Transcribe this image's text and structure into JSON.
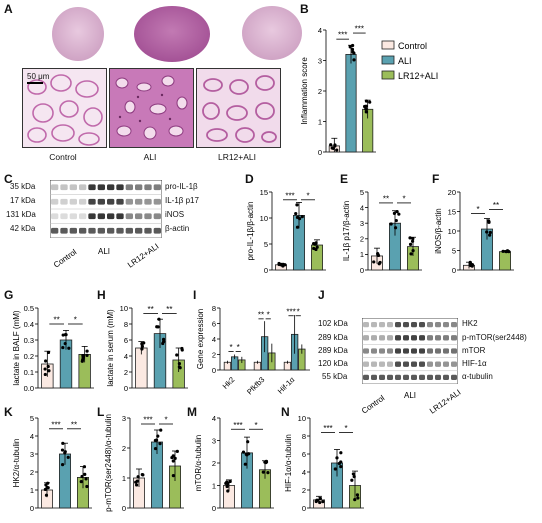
{
  "panels": {
    "A": {
      "letter": "A",
      "groups": [
        "Control",
        "ALI",
        "LR12+ALI"
      ],
      "scale_bar": "50 μm"
    },
    "B": {
      "letter": "B"
    },
    "C": {
      "letter": "C",
      "mw": [
        "35 kDa",
        "17 kDa",
        "131 kDa",
        "42 kDa"
      ],
      "bands": [
        "pro-IL-1β",
        "IL-1β p17",
        "iNOS",
        "β-actin"
      ],
      "groups": [
        "Control",
        "ALI",
        "LR12+ALI"
      ]
    },
    "D": {
      "letter": "D"
    },
    "E": {
      "letter": "E"
    },
    "F": {
      "letter": "F"
    },
    "G": {
      "letter": "G"
    },
    "H": {
      "letter": "H"
    },
    "I": {
      "letter": "I"
    },
    "J": {
      "letter": "J",
      "mw": [
        "102 kDa",
        "289 kDa",
        "289 kDa",
        "120 kDa",
        "55 kDa"
      ],
      "bands": [
        "HK2",
        "p-mTOR(ser2448)",
        "mTOR",
        "HIF-1α",
        "α-tubulin"
      ],
      "groups": [
        "Control",
        "ALI",
        "LR12+ALI"
      ]
    },
    "K": {
      "letter": "K"
    },
    "L": {
      "letter": "L"
    },
    "M": {
      "letter": "M"
    },
    "N": {
      "letter": "N"
    }
  },
  "legend": {
    "items": [
      "Control",
      "ALI",
      "LR12+ALI"
    ]
  },
  "colors": {
    "control": "#fbe9e2",
    "ali": "#5aa1b0",
    "lr12": "#9bbd5a",
    "histo_stain": "#b25aa0"
  },
  "chart_data": [
    {
      "id": "B",
      "type": "bar",
      "categories": [
        "Control",
        "ALI",
        "LR12+ALI"
      ],
      "values": [
        0.2,
        3.2,
        1.4
      ],
      "errors": [
        0.25,
        0.3,
        0.3
      ],
      "ylabel": "Inflammation score",
      "ylim": [
        0,
        4
      ],
      "yticks": [
        "0",
        "1",
        "2",
        "3",
        "4"
      ],
      "xticklabels": [],
      "sig": [
        {
          "a": 0,
          "b": 1,
          "label": "***",
          "level": 3.7
        },
        {
          "a": 1,
          "b": 2,
          "label": "***",
          "level": 3.9
        }
      ]
    },
    {
      "id": "D",
      "type": "bar",
      "categories": [
        "Control",
        "ALI",
        "LR12+ALI"
      ],
      "values": [
        1.0,
        10.5,
        4.8
      ],
      "errors": [
        0.3,
        2.5,
        1.0
      ],
      "ylabel": "pro-IL-1β/β-actin",
      "ylim": [
        0,
        15
      ],
      "yticks": [
        "0",
        "5",
        "10",
        "15"
      ],
      "xticklabels": [],
      "sig": [
        {
          "a": 0,
          "b": 1,
          "label": "***",
          "level": 13.5
        },
        {
          "a": 1,
          "b": 2,
          "label": "*",
          "level": 13.5
        }
      ]
    },
    {
      "id": "E",
      "type": "bar",
      "categories": [
        "Control",
        "ALI",
        "LR12+ALI"
      ],
      "values": [
        0.9,
        3.0,
        1.5
      ],
      "errors": [
        0.5,
        0.8,
        0.6
      ],
      "ylabel": "IL-1β p17/β-actin",
      "ylim": [
        0,
        5
      ],
      "yticks": [
        "0",
        "1",
        "2",
        "3",
        "4",
        "5"
      ],
      "xticklabels": [],
      "sig": [
        {
          "a": 0,
          "b": 1,
          "label": "**",
          "level": 4.3
        },
        {
          "a": 1,
          "b": 2,
          "label": "*",
          "level": 4.3
        }
      ]
    },
    {
      "id": "F",
      "type": "bar",
      "categories": [
        "Control",
        "ALI",
        "LR12+ALI"
      ],
      "values": [
        1.2,
        10.5,
        4.7
      ],
      "errors": [
        0.8,
        2.7,
        0.3
      ],
      "ylabel": "iNOS/β-actin",
      "ylim": [
        0,
        20
      ],
      "yticks": [
        "0",
        "5",
        "10",
        "15",
        "20"
      ],
      "xticklabels": [],
      "sig": [
        {
          "a": 0,
          "b": 1,
          "label": "*",
          "level": 14.5
        },
        {
          "a": 1,
          "b": 2,
          "label": "**",
          "level": 15.5
        }
      ]
    },
    {
      "id": "G",
      "type": "bar",
      "categories": [
        "Control",
        "ALI",
        "LR12+ALI"
      ],
      "values": [
        0.15,
        0.3,
        0.21
      ],
      "errors": [
        0.08,
        0.06,
        0.05
      ],
      "ylabel": "lactate in BALF (mM)",
      "ylim": [
        0,
        0.5
      ],
      "yticks": [
        "0.0",
        "0.1",
        "0.2",
        "0.3",
        "0.4",
        "0.5"
      ],
      "xticklabels": [],
      "sig": [
        {
          "a": 0,
          "b": 1,
          "label": "**",
          "level": 0.4
        },
        {
          "a": 1,
          "b": 2,
          "label": "*",
          "level": 0.4
        }
      ]
    },
    {
      "id": "H",
      "type": "bar",
      "categories": [
        "Control",
        "ALI",
        "LR12+ALI"
      ],
      "values": [
        5.0,
        6.8,
        3.5
      ],
      "errors": [
        0.8,
        1.8,
        1.5
      ],
      "ylabel": "lactate in serum (mM)",
      "ylim": [
        0,
        10
      ],
      "yticks": [
        "0",
        "2",
        "4",
        "6",
        "8",
        "10"
      ],
      "xticklabels": [],
      "sig": [
        {
          "a": 0,
          "b": 1,
          "label": "**",
          "level": 9.3
        },
        {
          "a": 1,
          "b": 2,
          "label": "**",
          "level": 9.3
        }
      ]
    },
    {
      "id": "I",
      "type": "bar",
      "categories": [
        "Hk2",
        "Pfkfb3",
        "Hif-1α"
      ],
      "series": [
        {
          "name": "Control",
          "values": [
            1.0,
            1.0,
            1.0
          ],
          "errors": [
            0.2,
            0.2,
            0.2
          ]
        },
        {
          "name": "ALI",
          "values": [
            1.7,
            4.3,
            4.6
          ],
          "errors": [
            0.3,
            2.0,
            2.5
          ]
        },
        {
          "name": "LR12+ALI",
          "values": [
            1.3,
            2.2,
            2.7
          ],
          "errors": [
            0.4,
            1.2,
            0.6
          ]
        }
      ],
      "ylabel": "Gene expression",
      "ylim": [
        0,
        8
      ],
      "yticks": [
        "0",
        "2",
        "4",
        "6",
        "8"
      ],
      "sig": [
        {
          "group": 0,
          "a": 0,
          "b": 1,
          "label": "*",
          "level": 2.4
        },
        {
          "group": 0,
          "a": 1,
          "b": 2,
          "label": "*",
          "level": 2.4
        },
        {
          "group": 1,
          "a": 0,
          "b": 1,
          "label": "**",
          "level": 6.6
        },
        {
          "group": 1,
          "a": 1,
          "b": 2,
          "label": "*",
          "level": 6.6
        },
        {
          "group": 2,
          "a": 0,
          "b": 1,
          "label": "***",
          "level": 7.0
        },
        {
          "group": 2,
          "a": 1,
          "b": 2,
          "label": "*",
          "level": 7.0
        }
      ]
    },
    {
      "id": "K",
      "type": "bar",
      "categories": [
        "Control",
        "ALI",
        "LR12+ALI"
      ],
      "values": [
        1.0,
        3.0,
        1.7
      ],
      "errors": [
        0.4,
        0.6,
        0.6
      ],
      "ylabel": "HK2/α-tubulin",
      "ylim": [
        0,
        5
      ],
      "yticks": [
        "0",
        "1",
        "2",
        "3",
        "4",
        "5"
      ],
      "xticklabels": [],
      "sig": [
        {
          "a": 0,
          "b": 1,
          "label": "***",
          "level": 4.4
        },
        {
          "a": 1,
          "b": 2,
          "label": "**",
          "level": 4.4
        }
      ]
    },
    {
      "id": "L",
      "type": "bar",
      "categories": [
        "Control",
        "ALI",
        "LR12+ALI"
      ],
      "values": [
        1.0,
        2.2,
        1.4
      ],
      "errors": [
        0.3,
        0.4,
        0.5
      ],
      "ylabel": "p-mTOR(ser2448)/α-tubulin",
      "ylim": [
        0,
        3
      ],
      "yticks": [
        "0",
        "1",
        "2",
        "3"
      ],
      "xticklabels": [],
      "sig": [
        {
          "a": 0,
          "b": 1,
          "label": "***",
          "level": 2.8
        },
        {
          "a": 1,
          "b": 2,
          "label": "*",
          "level": 2.8
        }
      ]
    },
    {
      "id": "M",
      "type": "bar",
      "categories": [
        "Control",
        "ALI",
        "LR12+ALI"
      ],
      "values": [
        1.0,
        2.45,
        1.7
      ],
      "errors": [
        0.25,
        0.7,
        0.4
      ],
      "ylabel": "mTOR/α-tubulin",
      "ylim": [
        0,
        4
      ],
      "yticks": [
        "0",
        "1",
        "2",
        "3",
        "4"
      ],
      "xticklabels": [],
      "sig": [
        {
          "a": 0,
          "b": 1,
          "label": "***",
          "level": 3.5
        },
        {
          "a": 1,
          "b": 2,
          "label": "*",
          "level": 3.5
        }
      ]
    },
    {
      "id": "N",
      "type": "bar",
      "categories": [
        "Control",
        "ALI",
        "LR12+ALI"
      ],
      "values": [
        0.9,
        5.0,
        2.5
      ],
      "errors": [
        0.4,
        1.5,
        1.6
      ],
      "ylabel": "HIF-1α/α-tubulin",
      "ylim": [
        0,
        10
      ],
      "yticks": [
        "0",
        "2",
        "4",
        "6",
        "8",
        "10"
      ],
      "xticklabels": [],
      "sig": [
        {
          "a": 0,
          "b": 1,
          "label": "***",
          "level": 8.4
        },
        {
          "a": 1,
          "b": 2,
          "label": "*",
          "level": 8.4
        }
      ]
    }
  ]
}
